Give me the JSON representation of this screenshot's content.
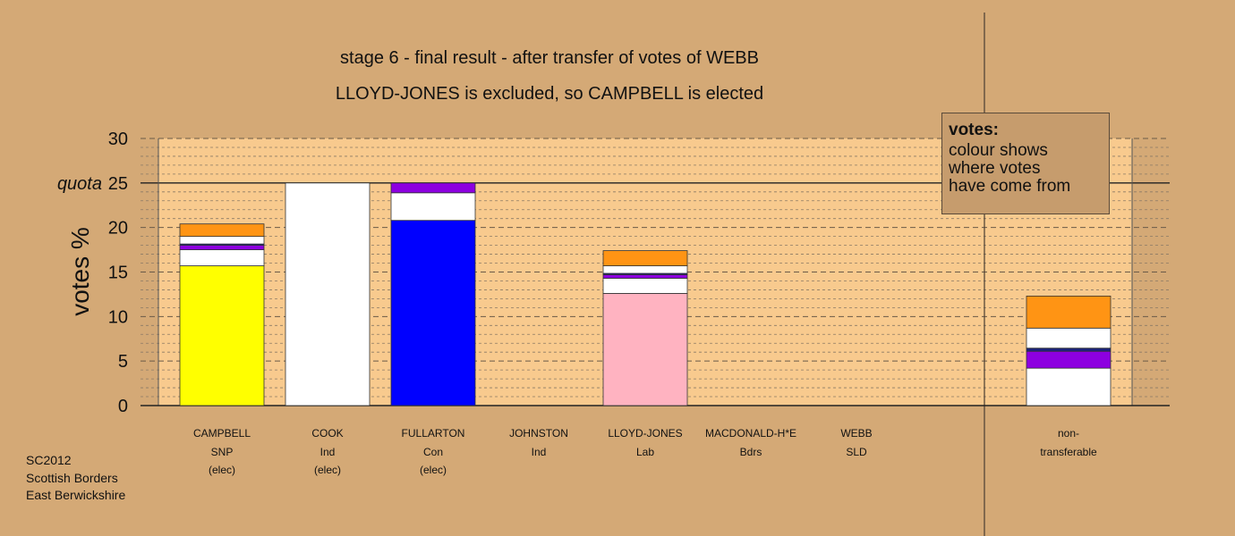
{
  "title": "stage 6 - final result - after transfer of votes of WEBB",
  "subtitle": "LLOYD-JONES is excluded, so CAMPBELL is elected",
  "legend": {
    "title": "votes:",
    "lines": [
      "colour shows",
      "where votes",
      "have come from"
    ]
  },
  "footer": [
    "SC2012",
    "Scottish Borders",
    "East Berwickshire"
  ],
  "colors": {
    "background": "#d4a976",
    "plot_fill": "#f8ca8e",
    "snp": "#ffff00",
    "con": "#0000ff",
    "lab": "#ffb3c1",
    "ind": "#ffffff",
    "bdrs": "#8d00e0",
    "sld": "#ff9414",
    "dark": "#1a237e"
  },
  "chart_data": {
    "type": "bar",
    "stacked": true,
    "ylabel": "votes %",
    "ylim": [
      0,
      30
    ],
    "yticks": [
      "0",
      "5",
      "10",
      "15",
      "20",
      "25",
      "30"
    ],
    "quota_label": "quota",
    "quota": 25,
    "grid": "dashed every 1%, stronger every 5%",
    "candidates": [
      {
        "name": "CAMPBELL",
        "party": "SNP",
        "status": "(elec)",
        "segments": [
          {
            "color": "#ffff00",
            "value": 15.7
          },
          {
            "color": "#ffffff",
            "value": 1.8
          },
          {
            "color": "#8d00e0",
            "value": 0.5
          },
          {
            "color": "#1a237e",
            "value": 0.15
          },
          {
            "color": "#ffffff",
            "value": 0.85
          },
          {
            "color": "#ff9414",
            "value": 1.4
          }
        ]
      },
      {
        "name": "COOK",
        "party": "Ind",
        "status": "(elec)",
        "segments": [
          {
            "color": "#ffffff",
            "value": 25.0
          }
        ]
      },
      {
        "name": "FULLARTON",
        "party": "Con",
        "status": "(elec)",
        "segments": [
          {
            "color": "#0000ff",
            "value": 20.8
          },
          {
            "color": "#ffffff",
            "value": 3.1
          },
          {
            "color": "#8d00e0",
            "value": 1.1
          }
        ]
      },
      {
        "name": "JOHNSTON",
        "party": "Ind",
        "status": "",
        "segments": []
      },
      {
        "name": "LLOYD-JONES",
        "party": "Lab",
        "status": "",
        "segments": [
          {
            "color": "#ffb3c1",
            "value": 12.6
          },
          {
            "color": "#ffffff",
            "value": 1.7
          },
          {
            "color": "#8d00e0",
            "value": 0.4
          },
          {
            "color": "#1a237e",
            "value": 0.15
          },
          {
            "color": "#ffffff",
            "value": 0.85
          },
          {
            "color": "#ff9414",
            "value": 1.7
          }
        ]
      },
      {
        "name": "MACDONALD-H*E",
        "party": "Bdrs",
        "status": "",
        "segments": []
      },
      {
        "name": "WEBB",
        "party": "SLD",
        "status": "",
        "segments": []
      }
    ],
    "nontransferable": {
      "name": "non-",
      "party": "transferable",
      "status": "",
      "segments": [
        {
          "color": "#ffffff",
          "value": 4.2
        },
        {
          "color": "#8d00e0",
          "value": 1.9
        },
        {
          "color": "#1a237e",
          "value": 0.35
        },
        {
          "color": "#ffffff",
          "value": 2.25
        },
        {
          "color": "#ff9414",
          "value": 3.6
        }
      ]
    }
  }
}
